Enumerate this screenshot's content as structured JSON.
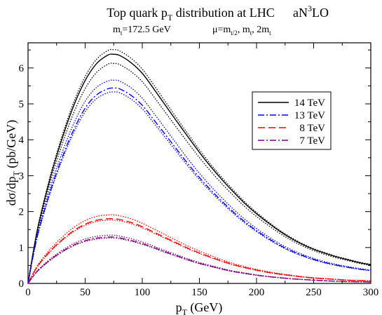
{
  "title": {
    "line1_prefix": "Top quark p",
    "line1_sub": "T",
    "line1_suffix": " distribution at LHC",
    "order_prefix": "aN",
    "order_sup": "3",
    "order_suffix": "LO",
    "mass_m": "m",
    "mass_sub": "t",
    "mass_value": "=172.5 GeV",
    "scale_mu": "μ=m",
    "scale_sub1": "t/2",
    "scale_mid": ", m",
    "scale_sub2": "t",
    "scale_mid2": ", 2m",
    "scale_sub3": "t"
  },
  "chart_data": {
    "type": "line",
    "xlabel": "p_T (GeV)",
    "ylabel": "dσ/dp_T (pb/GeV)",
    "xlabel_main": "p",
    "xlabel_sub": "T",
    "xlabel_unit": " (GeV)",
    "ylabel_main": "dσ/dp",
    "ylabel_sub": "T",
    "ylabel_unit": " (pb/GeV)",
    "xlim": [
      0,
      300
    ],
    "ylim": [
      0,
      6.7
    ],
    "x_ticks": [
      0,
      50,
      100,
      150,
      200,
      250,
      300
    ],
    "y_ticks": [
      0,
      1,
      2,
      3,
      4,
      5,
      6
    ],
    "legend_position": "top-right",
    "grid": false,
    "x": [
      0,
      5,
      10,
      20,
      30,
      40,
      50,
      60,
      70,
      75,
      80,
      90,
      100,
      110,
      120,
      130,
      140,
      150,
      160,
      170,
      180,
      190,
      200,
      210,
      220,
      230,
      240,
      250,
      260,
      270,
      280,
      290,
      300
    ],
    "series": [
      {
        "name": "14 TeV",
        "color": "#000000",
        "style": "solid",
        "values": [
          0,
          0.95,
          1.75,
          3.0,
          4.05,
          4.95,
          5.65,
          6.12,
          6.36,
          6.38,
          6.35,
          6.15,
          5.85,
          5.42,
          4.97,
          4.52,
          4.08,
          3.65,
          3.25,
          2.88,
          2.54,
          2.22,
          1.94,
          1.69,
          1.46,
          1.26,
          1.09,
          0.95,
          0.84,
          0.74,
          0.66,
          0.58,
          0.52
        ],
        "band": [
          0.02,
          0.04
        ]
      },
      {
        "name": "13 TeV",
        "color": "#0000ff",
        "style": "dash-dot",
        "values": [
          0,
          0.85,
          1.55,
          2.62,
          3.52,
          4.28,
          4.88,
          5.25,
          5.42,
          5.44,
          5.42,
          5.24,
          4.96,
          4.56,
          4.15,
          3.74,
          3.33,
          2.95,
          2.6,
          2.28,
          1.98,
          1.71,
          1.47,
          1.26,
          1.07,
          0.91,
          0.78,
          0.67,
          0.58,
          0.51,
          0.45,
          0.4,
          0.36
        ],
        "band": [
          0.04,
          0.02
        ]
      },
      {
        "name": "8 TeV",
        "color": "#ff0000",
        "style": "dashed",
        "values": [
          0,
          0.3,
          0.55,
          0.92,
          1.22,
          1.47,
          1.65,
          1.76,
          1.8,
          1.8,
          1.78,
          1.7,
          1.58,
          1.43,
          1.28,
          1.13,
          0.98,
          0.85,
          0.73,
          0.62,
          0.52,
          0.44,
          0.37,
          0.31,
          0.26,
          0.22,
          0.18,
          0.15,
          0.13,
          0.11,
          0.09,
          0.08,
          0.07
        ],
        "band": [
          0.06,
          0.02
        ]
      },
      {
        "name": "7 TeV",
        "color": "#800080",
        "style": "dash-dot",
        "values": [
          0,
          0.22,
          0.4,
          0.67,
          0.89,
          1.07,
          1.19,
          1.26,
          1.29,
          1.29,
          1.27,
          1.2,
          1.11,
          1.0,
          0.88,
          0.77,
          0.66,
          0.56,
          0.48,
          0.4,
          0.33,
          0.28,
          0.23,
          0.19,
          0.16,
          0.13,
          0.11,
          0.09,
          0.075,
          0.06,
          0.05,
          0.045,
          0.04
        ],
        "band": [
          0.04,
          0.02
        ]
      }
    ]
  }
}
